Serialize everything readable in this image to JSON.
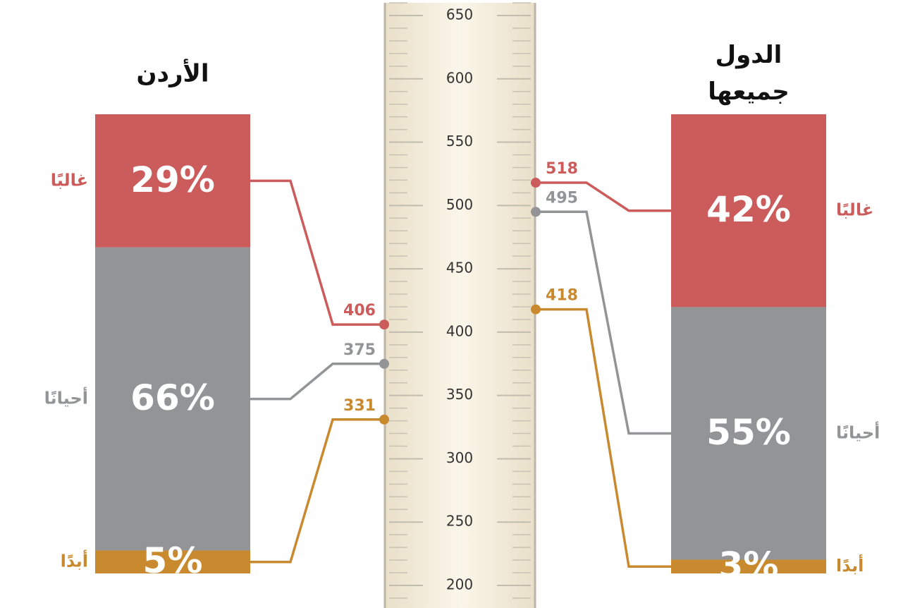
{
  "chart_data": {
    "type": "bar_scale",
    "categories": [
      "الأردن",
      "الدول جميعها"
    ],
    "series": [
      {
        "name": "غالبًا",
        "color": "#cc5b5c",
        "values": [
          29,
          42
        ],
        "value_labels": [
          "29%",
          "42%"
        ],
        "scores": [
          406,
          518
        ]
      },
      {
        "name": "أحيانًا",
        "color": "#939496",
        "values": [
          66,
          55
        ],
        "value_labels": [
          "66%",
          "55%"
        ],
        "scores": [
          375,
          495
        ]
      },
      {
        "name": "أبدًا",
        "color": "#c98a2f",
        "values": [
          5,
          3
        ],
        "value_labels": [
          "5%",
          "3%"
        ],
        "scores": [
          331,
          418
        ]
      }
    ],
    "ylim": [
      200,
      650
    ],
    "yticks": [
      200,
      250,
      300,
      350,
      400,
      450,
      500,
      550,
      600,
      650
    ]
  }
}
